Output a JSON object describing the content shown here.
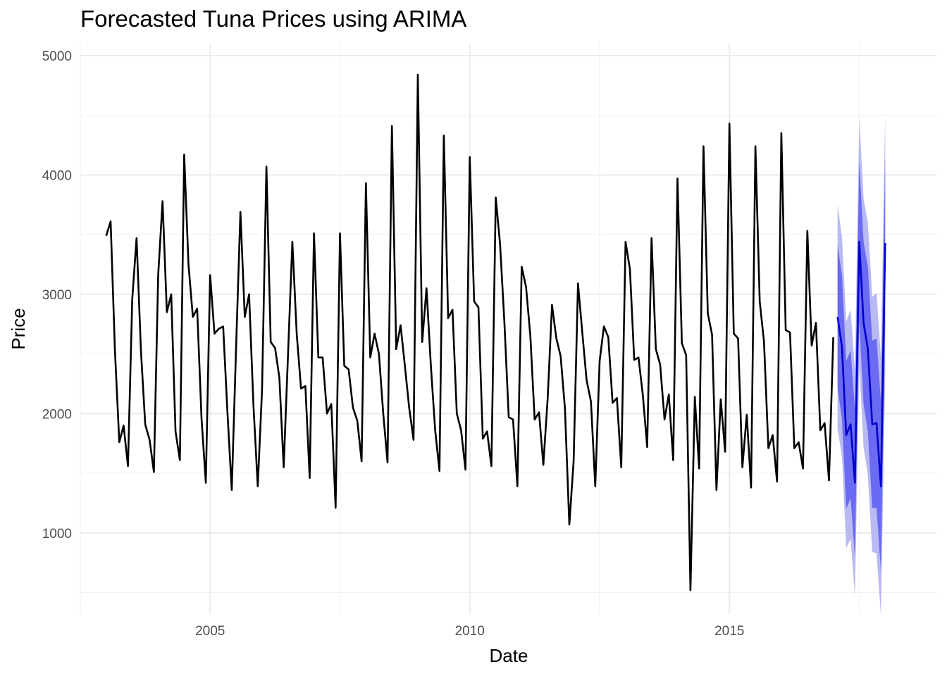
{
  "chart_data": {
    "type": "line",
    "title": "Forecasted Tuna Prices using ARIMA",
    "xlabel": "Date",
    "ylabel": "Price",
    "xlim": [
      2002.5,
      2019.0
    ],
    "ylim": [
      320,
      5100
    ],
    "x_ticks": [
      2005,
      2010,
      2015
    ],
    "y_ticks": [
      1000,
      2000,
      3000,
      4000,
      5000
    ],
    "grid": true,
    "colors": {
      "history_line": "#000000",
      "forecast_line": "#0000cc",
      "band_80": "#6a6af2",
      "band_95": "#b9b9f4",
      "grid_major": "#ebebeb",
      "grid_minor": "#f2f2f2"
    },
    "history": {
      "start": [
        2003,
        1
      ],
      "values": [
        3490,
        3610,
        2530,
        1760,
        1900,
        1560,
        2960,
        3470,
        2530,
        1910,
        1780,
        1510,
        3160,
        3780,
        2850,
        3000,
        1850,
        1610,
        4170,
        3250,
        2810,
        2880,
        1960,
        1420,
        3160,
        2670,
        2710,
        2730,
        2010,
        1360,
        2560,
        3690,
        2810,
        3000,
        2070,
        1390,
        2200,
        4070,
        2600,
        2550,
        2300,
        1550,
        2500,
        3440,
        2670,
        2210,
        2230,
        1460,
        3510,
        2470,
        2470,
        2000,
        2080,
        1210,
        3510,
        2400,
        2370,
        2050,
        1940,
        1600,
        3930,
        2470,
        2670,
        2500,
        2000,
        1590,
        4410,
        2540,
        2740,
        2400,
        2050,
        1780,
        4840,
        2600,
        3050,
        2400,
        1860,
        1520,
        4330,
        2800,
        2870,
        2000,
        1860,
        1530,
        4150,
        2940,
        2890,
        1790,
        1850,
        1560,
        3810,
        3420,
        2760,
        1970,
        1950,
        1390,
        3230,
        3060,
        2650,
        1950,
        2010,
        1570,
        2130,
        2910,
        2630,
        2480,
        2040,
        1070,
        1600,
        3090,
        2680,
        2280,
        2100,
        1390,
        2440,
        2730,
        2640,
        2090,
        2130,
        1550,
        3440,
        3210,
        2450,
        2470,
        2150,
        1720,
        3470,
        2540,
        2410,
        1950,
        2160,
        1610,
        3970,
        2590,
        2490,
        520,
        2140,
        1540,
        4240,
        2840,
        2660,
        1360,
        2120,
        1680,
        4430,
        2670,
        2630,
        1550,
        1990,
        1380,
        4240,
        2940,
        2600,
        1710,
        1820,
        1430,
        4350,
        2700,
        2680,
        1710,
        1760,
        1540,
        3530,
        2570,
        2760,
        1860,
        1920,
        1440,
        2640
      ]
    },
    "forecast": {
      "start": [
        2017,
        2
      ],
      "values": [
        2810,
        2560,
        1820,
        1910,
        1420,
        3440,
        2760,
        2540,
        1910,
        1920,
        1390,
        3430
      ],
      "lower_80": [
        2210,
        1960,
        1200,
        1290,
        800,
        2770,
        2080,
        1850,
        1210,
        1210,
        680,
        2710
      ],
      "upper_80": [
        3410,
        3160,
        2440,
        2530,
        2040,
        4110,
        3440,
        3230,
        2610,
        2630,
        2100,
        4150
      ],
      "lower_95": [
        1870,
        1640,
        870,
        950,
        470,
        2410,
        1720,
        1480,
        840,
        830,
        310,
        2330
      ],
      "upper_95": [
        3750,
        3480,
        2770,
        2870,
        2370,
        4470,
        3800,
        3600,
        2980,
        3010,
        2470,
        4530
      ]
    }
  }
}
